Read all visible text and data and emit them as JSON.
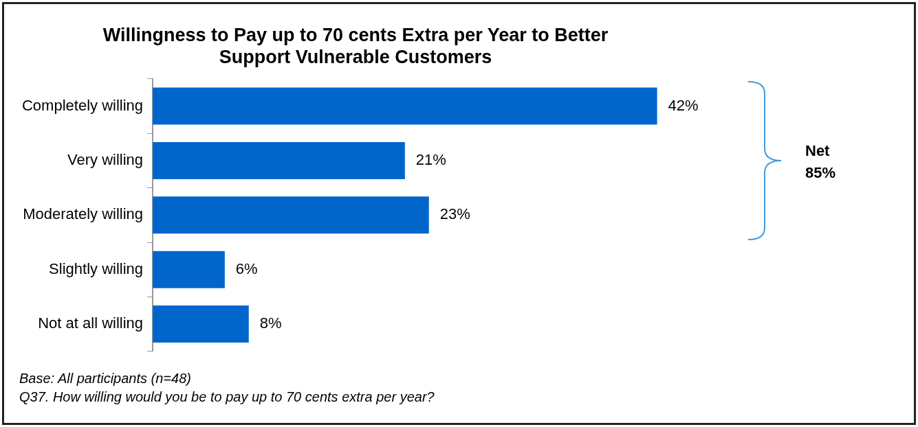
{
  "chart_data": {
    "type": "bar",
    "orientation": "horizontal",
    "title": "Willingness to Pay up to 70 cents Extra per Year to Better Support Vulnerable Customers",
    "categories": [
      "Completely willing",
      "Very willing",
      "Moderately willing",
      "Slightly willing",
      "Not at all willing"
    ],
    "values": [
      42,
      21,
      23,
      6,
      8
    ],
    "color": "#0066cc",
    "value_labels": [
      "42%",
      "21%",
      "23%",
      "6%",
      "8%"
    ],
    "tick_labels": "y",
    "legend": false,
    "annotations": [
      "Net 85%",
      "Base: All participants (n=48)",
      "Q37. How willing would you be to pay up to 70 cents extra per year?"
    ]
  }
}
